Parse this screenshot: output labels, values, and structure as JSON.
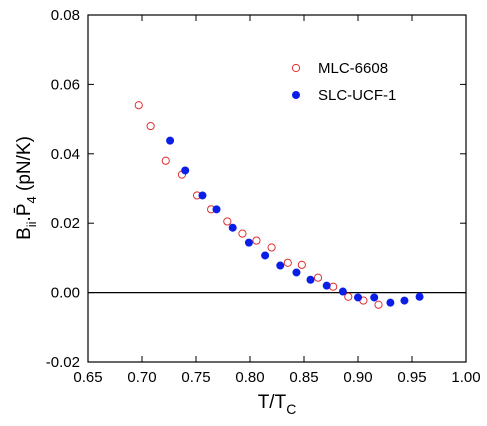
{
  "chart_data": {
    "type": "scatter",
    "xlabel_parts": [
      "T/T",
      "C"
    ],
    "ylabel_parts": [
      "B",
      "ii",
      ".",
      "P̄",
      "4",
      " (pN/K)"
    ],
    "xlim": [
      0.65,
      1.0
    ],
    "ylim": [
      -0.02,
      0.08
    ],
    "xticks": [
      {
        "value": 0.65,
        "label": "0.65"
      },
      {
        "value": 0.7,
        "label": "0.70"
      },
      {
        "value": 0.75,
        "label": "0.75"
      },
      {
        "value": 0.8,
        "label": "0.80"
      },
      {
        "value": 0.85,
        "label": "0.85"
      },
      {
        "value": 0.9,
        "label": "0.90"
      },
      {
        "value": 0.95,
        "label": "0.95"
      },
      {
        "value": 1.0,
        "label": "1.00"
      }
    ],
    "yticks": [
      {
        "value": -0.02,
        "label": "-0.02"
      },
      {
        "value": 0,
        "label": "0.00"
      },
      {
        "value": 0.02,
        "label": "0.02"
      },
      {
        "value": 0.04,
        "label": "0.04"
      },
      {
        "value": 0.06,
        "label": "0.06"
      },
      {
        "value": 0.08,
        "label": "0.08"
      }
    ],
    "reference_line": 0,
    "legend": "upper right",
    "series": [
      {
        "name": "MLC-6608",
        "color": "#e03030",
        "filled": false,
        "x": [
          0.697,
          0.708,
          0.722,
          0.737,
          0.751,
          0.764,
          0.779,
          0.793,
          0.806,
          0.82,
          0.835,
          0.848,
          0.863,
          0.877,
          0.891,
          0.905,
          0.919
        ],
        "values": [
          0.054,
          0.048,
          0.038,
          0.034,
          0.028,
          0.024,
          0.0205,
          0.017,
          0.015,
          0.013,
          0.0086,
          0.008,
          0.0043,
          0.0017,
          -0.0012,
          -0.0023,
          -0.0035
        ]
      },
      {
        "name": "SLC-UCF-1",
        "color": "#0a1ee8",
        "filled": true,
        "x": [
          0.726,
          0.74,
          0.756,
          0.769,
          0.784,
          0.799,
          0.814,
          0.828,
          0.843,
          0.856,
          0.871,
          0.886,
          0.9,
          0.915,
          0.93,
          0.943,
          0.957
        ],
        "values": [
          0.0438,
          0.0352,
          0.028,
          0.024,
          0.0187,
          0.0144,
          0.0107,
          0.0078,
          0.0058,
          0.0037,
          0.002,
          0.0003,
          -0.0014,
          -0.0014,
          -0.0029,
          -0.0023,
          -0.0012
        ]
      }
    ]
  }
}
